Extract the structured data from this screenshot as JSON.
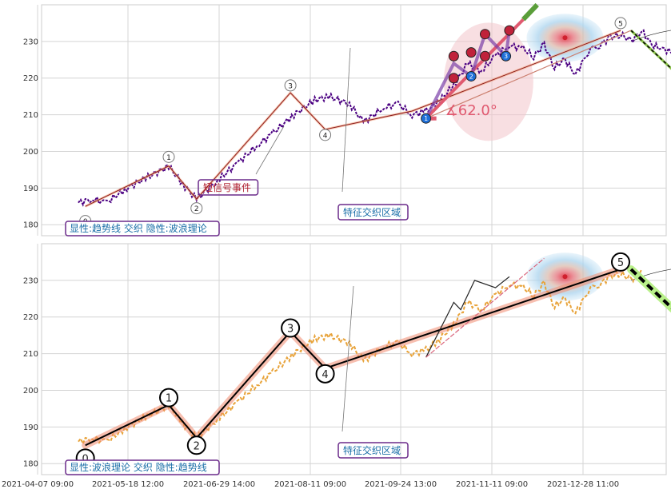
{
  "chart_data": {
    "type": "line",
    "x_ticks": [
      "2021-04-07 09:00",
      "2021-05-18 12:00",
      "2021-06-29 14:00",
      "2021-08-11 09:00",
      "2021-09-24 13:00",
      "2021-11-11 09:00",
      "2021-12-28 11:00"
    ],
    "panels": [
      {
        "id": "top",
        "ylim": [
          177,
          240
        ],
        "yticks": [
          180,
          190,
          200,
          210,
          220,
          230
        ],
        "series": [
          {
            "style": "price",
            "color": "#4b0082",
            "x": [
              0,
              4,
              8,
              14,
              20,
              26,
              30,
              34,
              40,
              46,
              52,
              56,
              62,
              68,
              72,
              78,
              82,
              88,
              92,
              96,
              100,
              104,
              108,
              112,
              116,
              120,
              124,
              128,
              131,
              134,
              137,
              140,
              143,
              146,
              148,
              150,
              153,
              156,
              159,
              162,
              165,
              168,
              171,
              174
            ],
            "y": [
              186,
              187,
              186,
              190,
              193,
              196,
              191,
              187,
              192,
              197,
              202,
              205,
              210,
              214,
              215,
              213,
              208,
              212,
              213,
              210,
              211,
              214,
              218,
              224,
              222,
              226,
              229,
              228,
              226,
              229,
              223,
              225,
              221,
              226,
              228,
              229,
              231,
              232,
              230,
              233,
              229,
              228,
              227,
              227
            ]
          },
          {
            "style": "wave",
            "color": "#d2691e",
            "x": [
              2,
              26,
              34,
              61,
              71,
              96,
              156
            ],
            "y": [
              185,
              196,
              187,
              216,
              206,
              211,
              233
            ]
          },
          {
            "style": "forecast",
            "color": "#000000",
            "x": [
              159,
              188,
              218,
              248
            ],
            "y": [
              233,
              207,
              228,
              201
            ]
          }
        ],
        "wave_points": [
          {
            "label": "0",
            "x": 2,
            "y": 181
          },
          {
            "label": "1",
            "x": 26,
            "y": 198.5
          },
          {
            "label": "2",
            "x": 34,
            "y": 184.5
          },
          {
            "label": "3",
            "x": 61,
            "y": 218
          },
          {
            "label": "4",
            "x": 71,
            "y": 204.5
          },
          {
            "label": "5",
            "x": 156,
            "y": 235
          }
        ],
        "sub_wave_points": [
          {
            "label": "1",
            "x": 100,
            "y": 209,
            "color": "#1e6fd9"
          },
          {
            "label": "2",
            "x": 113,
            "y": 220.5,
            "color": "#1e6fd9"
          },
          {
            "label": "3",
            "x": 123,
            "y": 226,
            "color": "#1e6fd9"
          },
          {
            "label": "",
            "x": 108,
            "y": 220,
            "color": "#c0223a"
          },
          {
            "label": "",
            "x": 108,
            "y": 226,
            "color": "#c0223a"
          },
          {
            "label": "",
            "x": 113,
            "y": 227,
            "color": "#c0223a"
          },
          {
            "label": "",
            "x": 117,
            "y": 232,
            "color": "#c0223a"
          },
          {
            "label": "",
            "x": 117,
            "y": 226,
            "color": "#c0223a"
          },
          {
            "label": "",
            "x": 124,
            "y": 233,
            "color": "#c0223a"
          }
        ],
        "angle_label": "∡62.0°",
        "annotations": [
          "短信号事件",
          "特征交织区域"
        ],
        "legend": "显性:趋势线 交织 隐性:波浪理论"
      },
      {
        "id": "bottom",
        "ylim": [
          177,
          240
        ],
        "yticks": [
          180,
          190,
          200,
          210,
          220,
          230
        ],
        "series": [
          {
            "style": "price",
            "color": "#e8a33a",
            "x": [
              0,
              4,
              8,
              14,
              20,
              26,
              30,
              34,
              40,
              46,
              52,
              56,
              62,
              68,
              72,
              78,
              82,
              88,
              92,
              96,
              100,
              104,
              108,
              112,
              116,
              120,
              124,
              128,
              131,
              134,
              137,
              140,
              143,
              146,
              148,
              150,
              153,
              156,
              159,
              162
            ],
            "y": [
              186,
              187,
              186,
              190,
              193,
              196,
              191,
              187,
              192,
              197,
              202,
              205,
              210,
              214,
              215,
              213,
              208,
              212,
              213,
              210,
              211,
              214,
              218,
              224,
              222,
              226,
              229,
              228,
              226,
              229,
              223,
              225,
              221,
              226,
              228,
              229,
              231,
              232,
              230,
              233
            ]
          },
          {
            "style": "wave",
            "color": "#000000",
            "x": [
              2,
              26,
              34,
              61,
              71,
              156
            ],
            "y": [
              185,
              196,
              187,
              216,
              206,
              233
            ]
          },
          {
            "style": "forecast",
            "color": "#000000",
            "x": [
              159,
              188,
              218,
              248
            ],
            "y": [
              233,
              207,
              228,
              201
            ]
          }
        ],
        "wave_points": [
          {
            "label": "0",
            "x": 2,
            "y": 181.5
          },
          {
            "label": "1",
            "x": 26,
            "y": 198
          },
          {
            "label": "2",
            "x": 34,
            "y": 185
          },
          {
            "label": "3",
            "x": 61,
            "y": 217
          },
          {
            "label": "4",
            "x": 71,
            "y": 204.5
          },
          {
            "label": "5",
            "x": 156,
            "y": 235
          }
        ],
        "annotations": [
          "特征交织区域"
        ],
        "legend": "显性:波浪理论 交织 隐性:趋势线"
      }
    ],
    "grid": true
  }
}
